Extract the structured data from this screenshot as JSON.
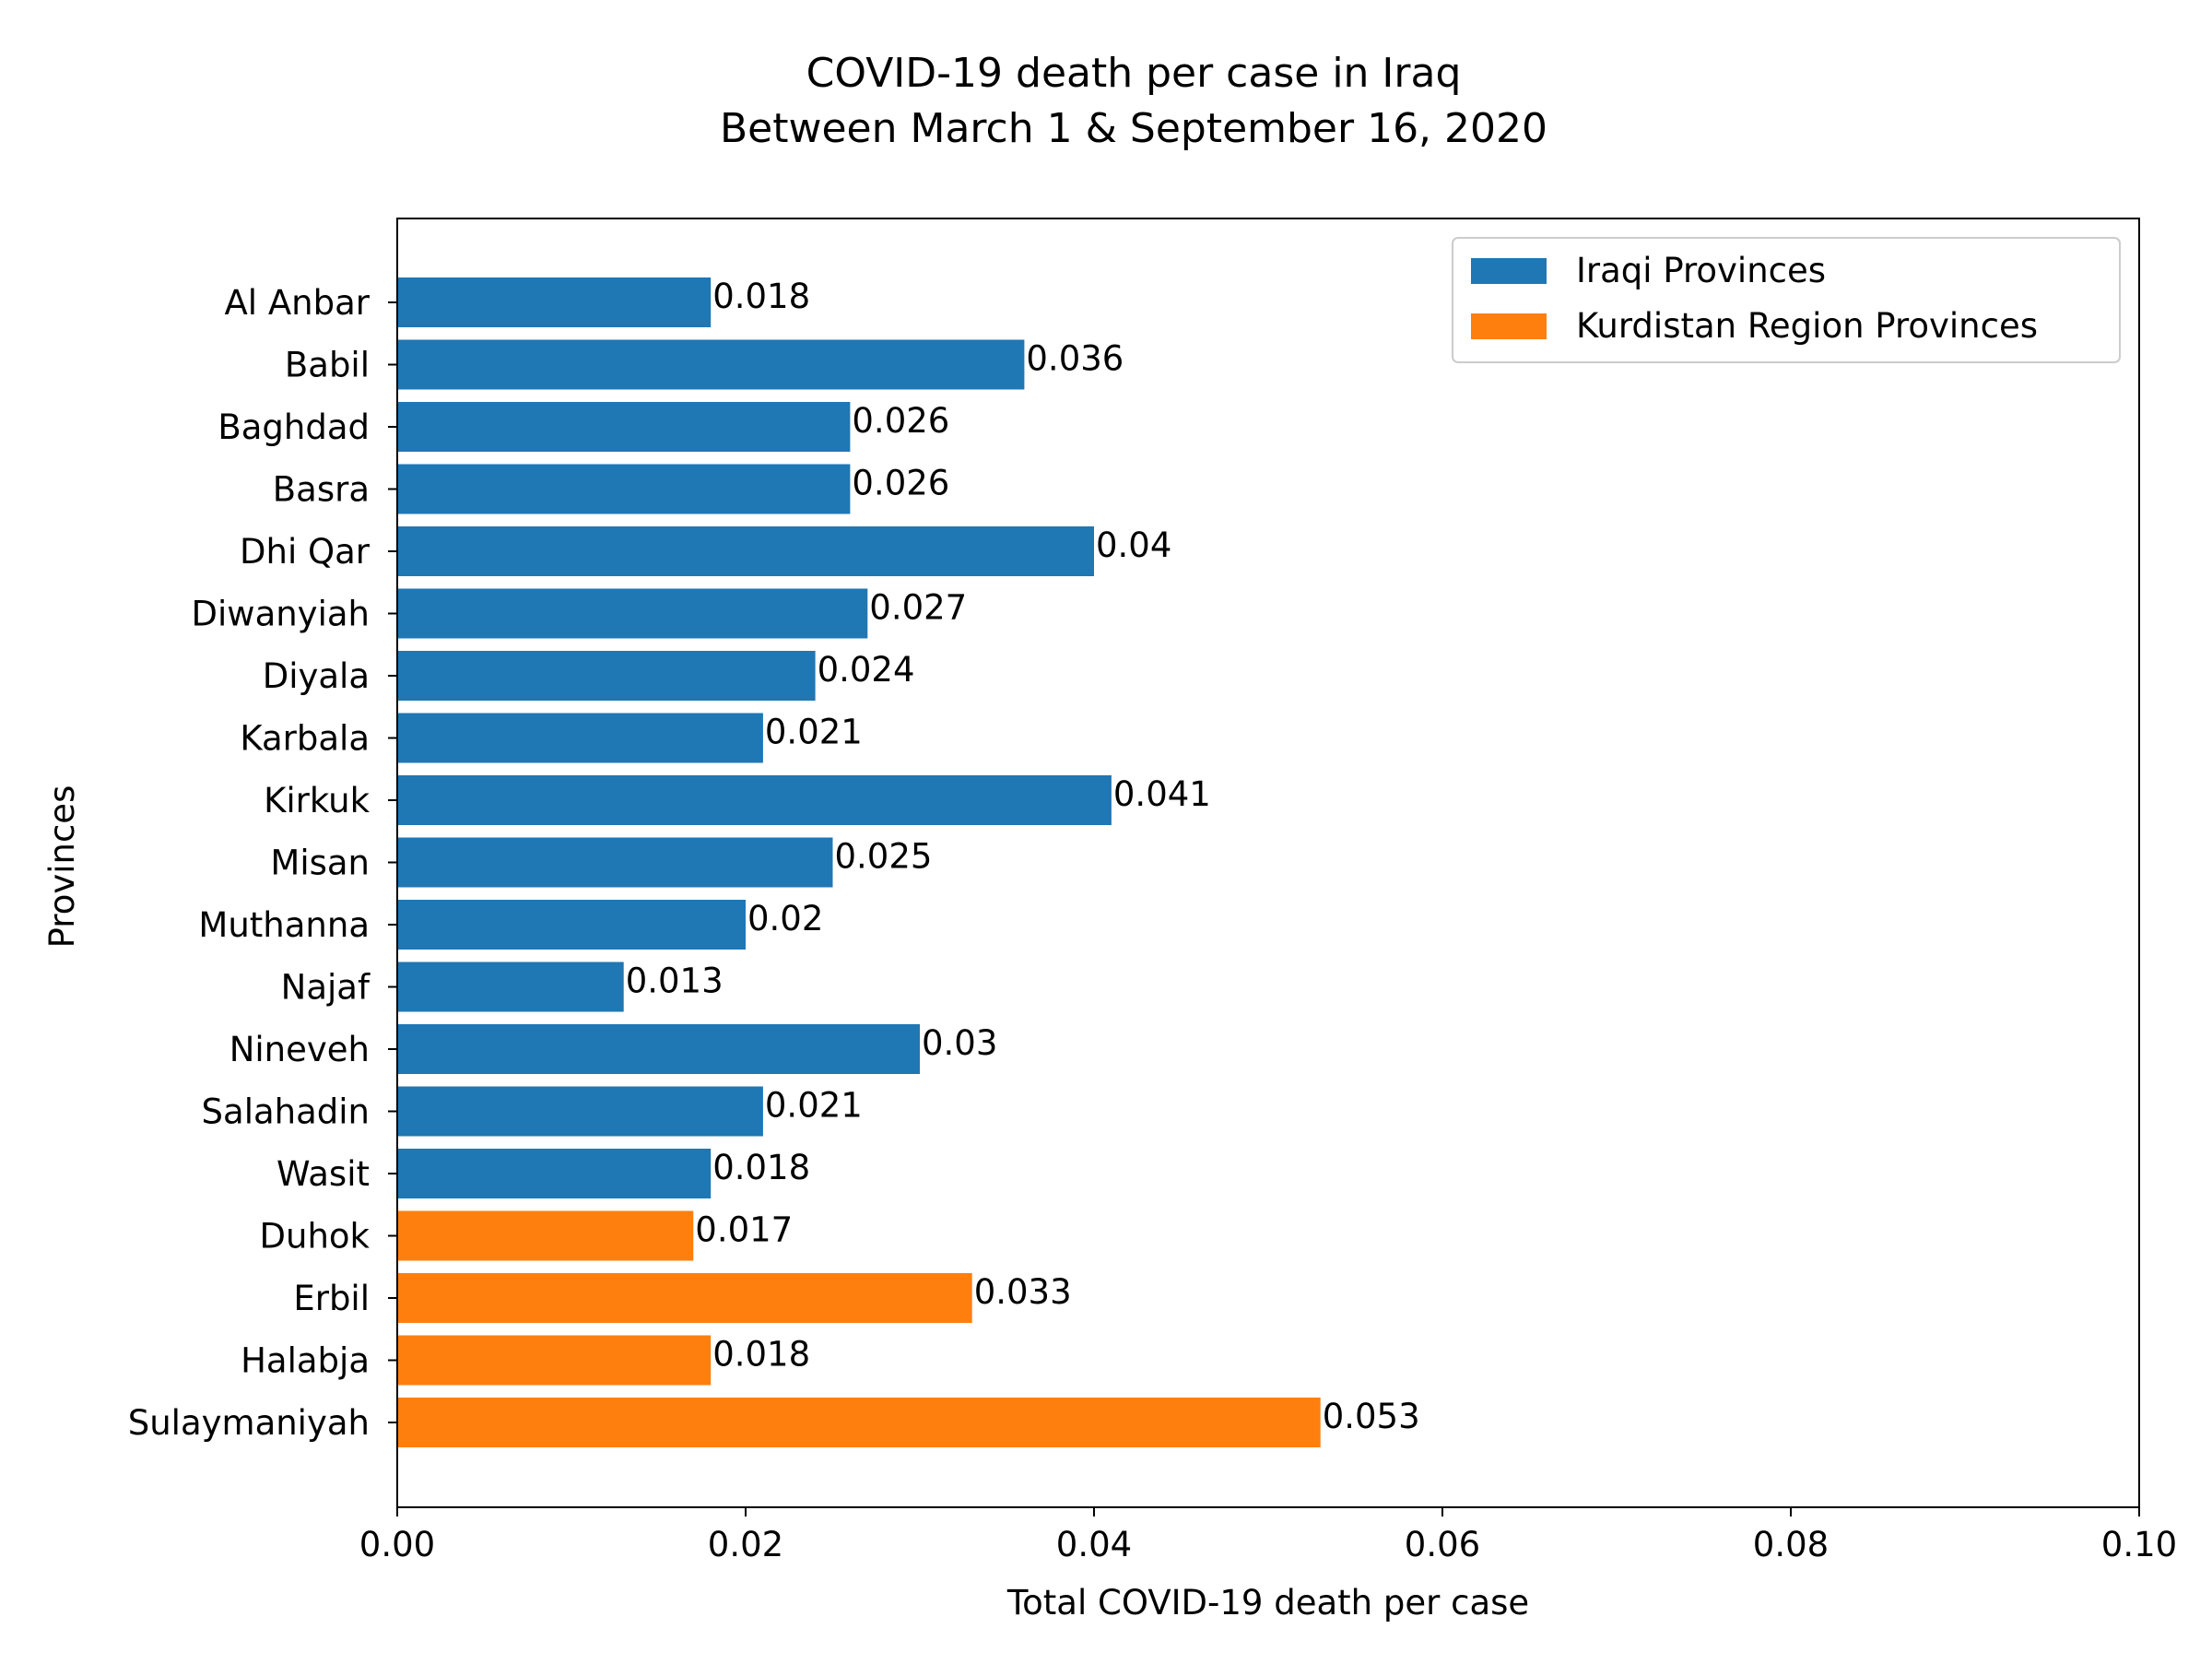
{
  "chart_data": {
    "type": "bar",
    "orientation": "horizontal",
    "title": "COVID-19 death per case in Iraq",
    "subtitle": "Between March 1 & September 16, 2020",
    "xlabel": "Total COVID-19 death per case",
    "ylabel": "Provinces",
    "xlim": [
      0,
      0.1
    ],
    "x_ticks": [
      "0.00",
      "0.02",
      "0.04",
      "0.06",
      "0.08",
      "0.10"
    ],
    "grid": false,
    "legend_position": "top-right",
    "series": [
      {
        "name": "Iraqi Provinces",
        "color": "#1f77b4",
        "categories": [
          "Al Anbar",
          "Babil",
          "Baghdad",
          "Basra",
          "Dhi Qar",
          "Diwanyiah",
          "Diyala",
          "Karbala",
          "Kirkuk",
          "Misan",
          "Muthanna",
          "Najaf",
          "Nineveh",
          "Salahadin",
          "Wasit"
        ],
        "values": [
          0.018,
          0.036,
          0.026,
          0.026,
          0.04,
          0.027,
          0.024,
          0.021,
          0.041,
          0.025,
          0.02,
          0.013,
          0.03,
          0.021,
          0.018
        ],
        "labels": [
          "0.018",
          "0.036",
          "0.026",
          "0.026",
          "0.04",
          "0.027",
          "0.024",
          "0.021",
          "0.041",
          "0.025",
          "0.02",
          "0.013",
          "0.03",
          "0.021",
          "0.018"
        ]
      },
      {
        "name": "Kurdistan Region Provinces",
        "color": "#ff7f0e",
        "categories": [
          "Duhok",
          "Erbil",
          "Halabja",
          "Sulaymaniyah"
        ],
        "values": [
          0.017,
          0.033,
          0.018,
          0.053
        ],
        "labels": [
          "0.017",
          "0.033",
          "0.018",
          "0.053"
        ]
      }
    ]
  }
}
